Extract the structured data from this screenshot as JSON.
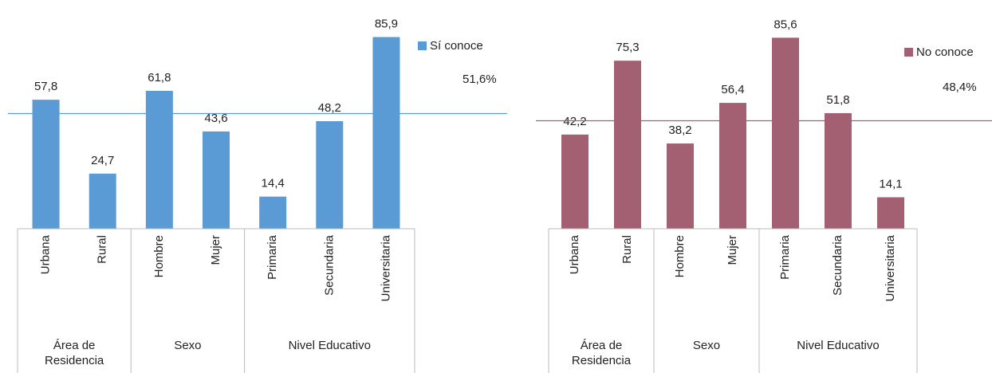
{
  "chart_data": [
    {
      "type": "bar",
      "categories": [
        "Urbana",
        "Rural",
        "Hombre",
        "Mujer",
        "Primaria",
        "Secundaria",
        "Universitaria"
      ],
      "groups": [
        {
          "label": "Área de Residencia",
          "size": 2
        },
        {
          "label": "Sexo",
          "size": 2
        },
        {
          "label": "Nivel Educativo",
          "size": 3
        }
      ],
      "series": [
        {
          "name": "Sí conoce",
          "color": "#5b9bd5",
          "values": [
            57.8,
            24.7,
            61.8,
            43.6,
            14.4,
            48.2,
            85.9
          ],
          "value_labels": [
            "57,8",
            "24,7",
            "61,8",
            "43,6",
            "14,4",
            "48,2",
            "85,9"
          ]
        }
      ],
      "reference_line": {
        "value": 51.6,
        "label": "51,6%",
        "color": "#5b9bd5"
      },
      "ylim": [
        0,
        90
      ]
    },
    {
      "type": "bar",
      "categories": [
        "Urbana",
        "Rural",
        "Hombre",
        "Mujer",
        "Primaria",
        "Secundaria",
        "Universitaria"
      ],
      "groups": [
        {
          "label": "Área de Residencia",
          "size": 2
        },
        {
          "label": "Sexo",
          "size": 2
        },
        {
          "label": "Nivel Educativo",
          "size": 3
        }
      ],
      "series": [
        {
          "name": "No conoce",
          "color": "#a36073",
          "values": [
            42.2,
            75.3,
            38.2,
            56.4,
            85.6,
            51.8,
            14.1
          ],
          "value_labels": [
            "42,2",
            "75,3",
            "38,2",
            "56,4",
            "85,6",
            "51,8",
            "14,1"
          ]
        }
      ],
      "reference_line": {
        "value": 48.4,
        "label": "48,4%",
        "color": "#a36073"
      },
      "ylim": [
        0,
        90
      ]
    }
  ]
}
